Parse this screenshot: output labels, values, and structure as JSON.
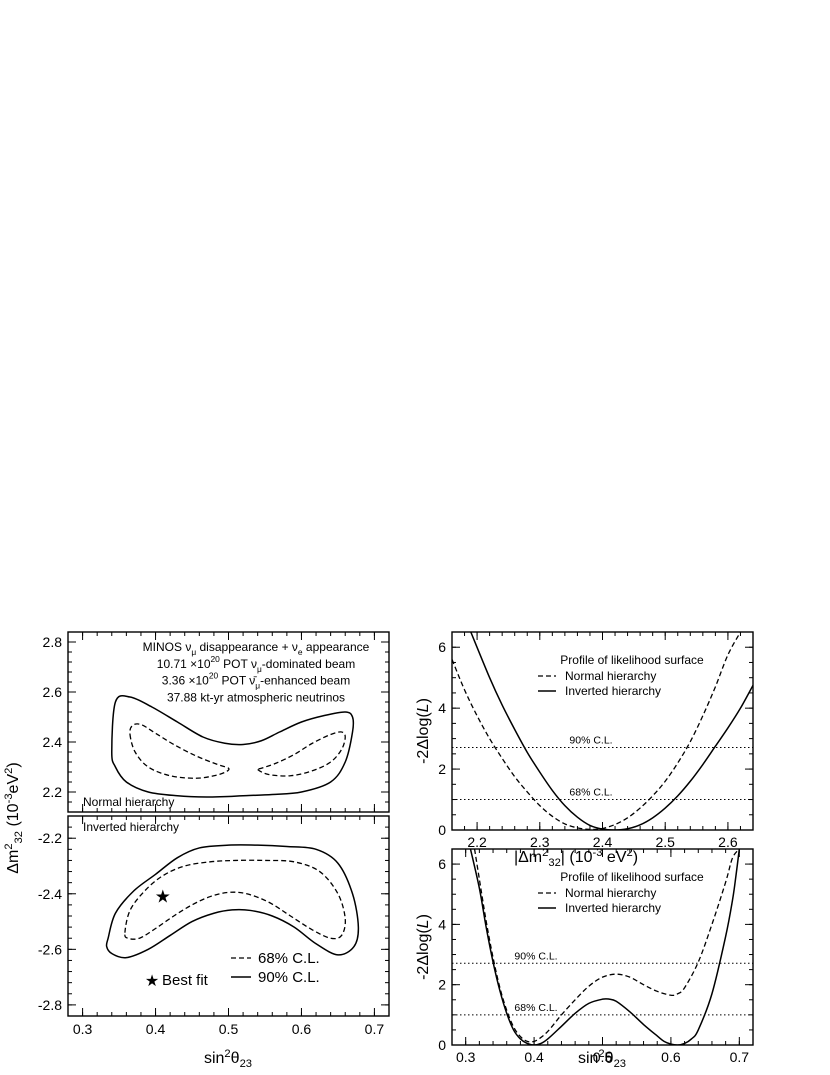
{
  "chart_data": [
    {
      "type": "contour",
      "panel": "top-left",
      "ylabel_parts": [
        "Δm",
        "2",
        "32",
        " (10",
        "-3",
        "eV",
        "2",
        ")"
      ],
      "ylim": [
        2.12,
        2.84
      ],
      "xlim": [
        0.28,
        0.72
      ],
      "yticks": [
        "2.2",
        "2.4",
        "2.6",
        "2.8"
      ],
      "annotation_lines": [
        {
          "parts": [
            "MINOS ν",
            "μ",
            " disappearance + ν",
            "e",
            " appearance"
          ]
        },
        {
          "parts": [
            "10.71 ×10",
            "20",
            " POT ν",
            "μ",
            "-dominated beam"
          ]
        },
        {
          "parts": [
            "3.36 ×10",
            "20",
            " POT ν̄",
            "μ",
            "-enhanced beam"
          ]
        },
        {
          "parts": [
            "37.88 kt-yr atmospheric neutrinos"
          ]
        }
      ],
      "hierarchy_label": "Normal hierarchy",
      "series": [
        {
          "name": "90% C.L.",
          "style": "solid",
          "closed": true,
          "x": [
            0.34,
            0.345,
            0.36,
            0.39,
            0.43,
            0.47,
            0.5,
            0.52,
            0.56,
            0.6,
            0.64,
            0.66,
            0.67,
            0.67,
            0.66,
            0.63,
            0.6,
            0.57,
            0.545,
            0.52,
            0.495,
            0.465,
            0.43,
            0.395,
            0.365,
            0.345
          ],
          "y": [
            2.36,
            2.3,
            2.24,
            2.2,
            2.185,
            2.18,
            2.182,
            2.185,
            2.19,
            2.2,
            2.24,
            2.32,
            2.44,
            2.5,
            2.52,
            2.505,
            2.48,
            2.44,
            2.405,
            2.39,
            2.395,
            2.42,
            2.48,
            2.54,
            2.58,
            2.56
          ]
        },
        {
          "name": "68% C.L.",
          "style": "dashed",
          "closed": true,
          "x": [
            0.365,
            0.372,
            0.39,
            0.42,
            0.455,
            0.48,
            0.496,
            0.5,
            0.485,
            0.455,
            0.425,
            0.4,
            0.38,
            0.368
          ],
          "y": [
            2.43,
            2.36,
            2.3,
            2.265,
            2.255,
            2.265,
            2.28,
            2.295,
            2.31,
            2.345,
            2.39,
            2.435,
            2.47,
            2.465
          ]
        },
        {
          "name": "68% C.L.",
          "style": "dashed",
          "closed": true,
          "x": [
            0.54,
            0.555,
            0.585,
            0.615,
            0.64,
            0.655,
            0.66,
            0.655,
            0.64,
            0.615,
            0.59,
            0.565,
            0.545
          ],
          "y": [
            2.29,
            2.27,
            2.265,
            2.285,
            2.32,
            2.37,
            2.42,
            2.44,
            2.43,
            2.395,
            2.35,
            2.315,
            2.295
          ]
        }
      ]
    },
    {
      "type": "contour",
      "panel": "bottom-left",
      "xlabel_parts": [
        "sin",
        "2",
        "θ",
        "23"
      ],
      "ylim": [
        -2.84,
        -2.12
      ],
      "xlim": [
        0.28,
        0.72
      ],
      "xticks": [
        "0.3",
        "0.4",
        "0.5",
        "0.6",
        "0.7"
      ],
      "yticks": [
        "-2.2",
        "-2.4",
        "-2.6",
        "-2.8"
      ],
      "hierarchy_label": "Inverted hierarchy",
      "best_fit": {
        "x": 0.41,
        "y": -2.41
      },
      "legend": {
        "best_fit": "Best fit",
        "dashed": "68% C.L.",
        "solid": "90% C.L."
      },
      "series": [
        {
          "name": "90% C.L.",
          "style": "solid",
          "closed": true,
          "x": [
            0.335,
            0.345,
            0.37,
            0.4,
            0.43,
            0.46,
            0.5,
            0.54,
            0.58,
            0.62,
            0.65,
            0.67,
            0.678,
            0.672,
            0.65,
            0.62,
            0.59,
            0.56,
            0.53,
            0.505,
            0.48,
            0.45,
            0.42,
            0.39,
            0.36,
            0.34,
            0.333
          ],
          "y": [
            -2.56,
            -2.47,
            -2.39,
            -2.33,
            -2.27,
            -2.235,
            -2.225,
            -2.225,
            -2.23,
            -2.24,
            -2.29,
            -2.4,
            -2.52,
            -2.59,
            -2.62,
            -2.58,
            -2.52,
            -2.48,
            -2.46,
            -2.458,
            -2.47,
            -2.5,
            -2.55,
            -2.6,
            -2.63,
            -2.615,
            -2.59
          ]
        },
        {
          "name": "68% C.L.",
          "style": "dashed",
          "closed": true,
          "x": [
            0.358,
            0.365,
            0.385,
            0.41,
            0.44,
            0.475,
            0.51,
            0.55,
            0.59,
            0.625,
            0.65,
            0.66,
            0.655,
            0.64,
            0.615,
            0.585,
            0.555,
            0.525,
            0.5,
            0.475,
            0.45,
            0.425,
            0.4,
            0.378,
            0.362
          ],
          "y": [
            -2.54,
            -2.46,
            -2.39,
            -2.335,
            -2.3,
            -2.285,
            -2.28,
            -2.28,
            -2.285,
            -2.32,
            -2.4,
            -2.49,
            -2.55,
            -2.56,
            -2.53,
            -2.48,
            -2.43,
            -2.4,
            -2.395,
            -2.41,
            -2.44,
            -2.48,
            -2.525,
            -2.56,
            -2.56
          ]
        }
      ]
    },
    {
      "type": "line",
      "panel": "top-right",
      "title": "Profile of likelihood surface",
      "xlabel_parts": [
        "|Δm",
        "2",
        "32",
        "| (10",
        "-3",
        " eV",
        "2",
        ")"
      ],
      "ylabel_parts": [
        "-2Δlog(",
        "L",
        ")"
      ],
      "xlim": [
        2.16,
        2.64
      ],
      "ylim": [
        0,
        6.5
      ],
      "xticks": [
        "2.2",
        "2.3",
        "2.4",
        "2.5",
        "2.6"
      ],
      "yticks": [
        "0",
        "2",
        "4",
        "6"
      ],
      "cl_lines": [
        {
          "label": "90% C.L.",
          "y": 2.71
        },
        {
          "label": "68% C.L.",
          "y": 1.0
        }
      ],
      "series": [
        {
          "name": "Normal hierarchy",
          "style": "dashed",
          "x": [
            2.16,
            2.18,
            2.2,
            2.22,
            2.24,
            2.26,
            2.28,
            2.3,
            2.32,
            2.34,
            2.36,
            2.38,
            2.4,
            2.42,
            2.44,
            2.46,
            2.48,
            2.5,
            2.52,
            2.54,
            2.56,
            2.58,
            2.6,
            2.62
          ],
          "y": [
            5.6,
            4.6,
            3.75,
            3.0,
            2.35,
            1.75,
            1.25,
            0.8,
            0.45,
            0.2,
            0.07,
            0.02,
            0.05,
            0.18,
            0.4,
            0.72,
            1.12,
            1.6,
            2.2,
            2.9,
            3.75,
            4.7,
            5.75,
            6.5
          ]
        },
        {
          "name": "Inverted hierarchy",
          "style": "solid",
          "x": [
            2.19,
            2.22,
            2.24,
            2.26,
            2.28,
            2.3,
            2.32,
            2.34,
            2.36,
            2.38,
            2.4,
            2.42,
            2.44,
            2.46,
            2.48,
            2.5,
            2.52,
            2.54,
            2.56,
            2.58,
            2.6,
            2.62,
            2.64
          ],
          "y": [
            6.5,
            5.0,
            4.1,
            3.3,
            2.55,
            1.9,
            1.3,
            0.8,
            0.42,
            0.15,
            0.03,
            0.0,
            0.04,
            0.17,
            0.4,
            0.72,
            1.12,
            1.6,
            2.15,
            2.75,
            3.35,
            4.0,
            4.75
          ]
        }
      ]
    },
    {
      "type": "line",
      "panel": "bottom-right",
      "title": "Profile of likelihood surface",
      "xlabel_parts": [
        "sin",
        "2",
        "θ",
        "23"
      ],
      "ylabel_parts": [
        "-2Δlog(",
        "L",
        ")"
      ],
      "xlim": [
        0.28,
        0.72
      ],
      "ylim": [
        0,
        6.5
      ],
      "xticks": [
        "0.3",
        "0.4",
        "0.5",
        "0.6",
        "0.7"
      ],
      "yticks": [
        "0",
        "2",
        "4",
        "6"
      ],
      "cl_lines": [
        {
          "label": "90% C.L.",
          "y": 2.71
        },
        {
          "label": "68% C.L.",
          "y": 1.0
        }
      ],
      "series": [
        {
          "name": "Normal hierarchy",
          "style": "dashed",
          "x": [
            0.313,
            0.32,
            0.33,
            0.34,
            0.35,
            0.36,
            0.37,
            0.38,
            0.39,
            0.4,
            0.41,
            0.42,
            0.43,
            0.44,
            0.46,
            0.48,
            0.5,
            0.52,
            0.54,
            0.56,
            0.58,
            0.6,
            0.61,
            0.62,
            0.64,
            0.66,
            0.68,
            0.69,
            0.7
          ],
          "y": [
            6.5,
            5.5,
            4.1,
            2.9,
            1.9,
            1.15,
            0.6,
            0.28,
            0.12,
            0.12,
            0.25,
            0.45,
            0.72,
            1.0,
            1.5,
            1.95,
            2.25,
            2.35,
            2.25,
            2.0,
            1.78,
            1.65,
            1.7,
            1.9,
            2.75,
            4.0,
            5.4,
            6.2,
            6.5
          ]
        },
        {
          "name": "Inverted hierarchy",
          "style": "solid",
          "x": [
            0.307,
            0.32,
            0.33,
            0.34,
            0.35,
            0.36,
            0.37,
            0.38,
            0.39,
            0.4,
            0.41,
            0.42,
            0.44,
            0.46,
            0.48,
            0.5,
            0.51,
            0.52,
            0.54,
            0.56,
            0.58,
            0.59,
            0.6,
            0.61,
            0.62,
            0.63,
            0.64,
            0.66,
            0.68,
            0.69,
            0.695,
            0.7
          ],
          "y": [
            6.5,
            5.2,
            3.9,
            2.75,
            1.8,
            1.05,
            0.5,
            0.2,
            0.05,
            0.0,
            0.05,
            0.2,
            0.62,
            1.05,
            1.38,
            1.52,
            1.52,
            1.45,
            1.1,
            0.68,
            0.3,
            0.12,
            0.03,
            0.0,
            0.05,
            0.2,
            0.5,
            1.7,
            3.6,
            4.8,
            5.6,
            6.5
          ]
        }
      ]
    }
  ]
}
